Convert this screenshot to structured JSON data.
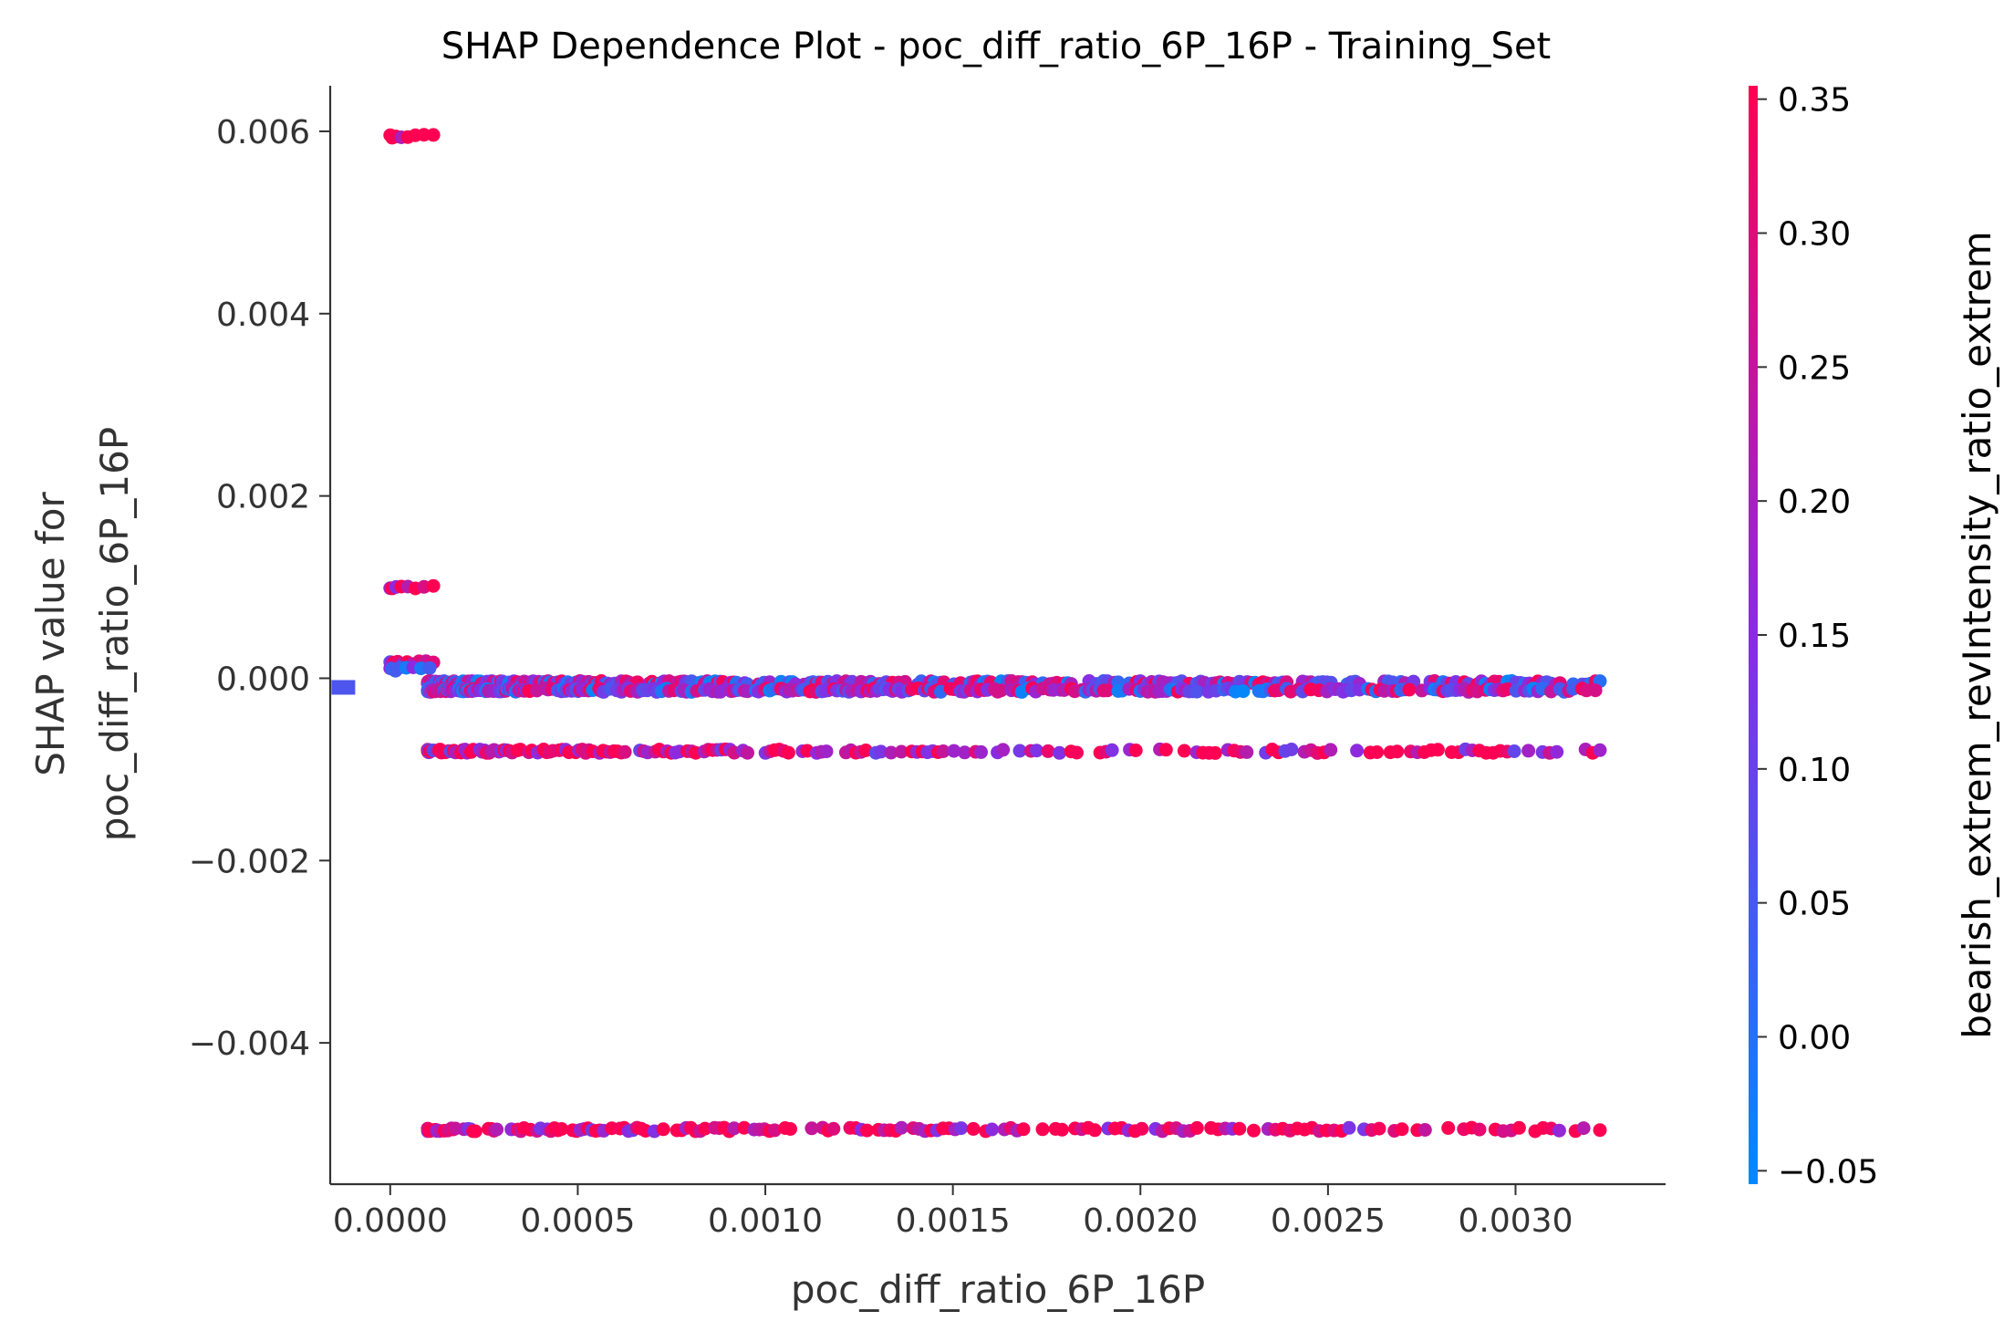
{
  "chart_data": {
    "type": "scatter",
    "title": "SHAP Dependence Plot - poc_diff_ratio_6P_16P - Training_Set",
    "xlabel": "poc_diff_ratio_6P_16P",
    "ylabel_lines": [
      "SHAP value for",
      "poc_diff_ratio_6P_16P"
    ],
    "xlim": [
      -0.00016,
      0.0034
    ],
    "ylim": [
      -0.00555,
      0.0065
    ],
    "xticks": [
      0.0,
      0.0005,
      0.001,
      0.0015,
      0.002,
      0.0025,
      0.003
    ],
    "xtick_labels": [
      "0.0000",
      "0.0005",
      "0.0010",
      "0.0015",
      "0.0020",
      "0.0025",
      "0.0030"
    ],
    "yticks": [
      0.006,
      0.004,
      0.002,
      0.0,
      -0.002,
      -0.004
    ],
    "ytick_labels": [
      "0.006",
      "0.004",
      "0.002",
      "0.000",
      "−0.002",
      "−0.004"
    ],
    "colorbar": {
      "label": "bearish_extrem_revIntensity_ratio_extrem",
      "range": [
        -0.055,
        0.355
      ],
      "ticks": [
        0.35,
        0.3,
        0.25,
        0.2,
        0.15,
        0.1,
        0.05,
        0.0,
        -0.05
      ],
      "tick_labels": [
        "0.35",
        "0.30",
        "0.25",
        "0.20",
        "0.15",
        "0.10",
        "0.05",
        "0.00",
        "−0.05"
      ],
      "color_low": "#008afb",
      "color_mid": "#8a2be2",
      "color_high": "#ff0052"
    },
    "missing_marker": {
      "x": -0.000125,
      "y": -0.0001,
      "color_value": 0.06
    },
    "bands": [
      {
        "y": 0.00595,
        "x_min": 0.0,
        "x_max": 0.000115,
        "color_value": 0.35,
        "points": 8
      },
      {
        "y": 0.001,
        "x_min": 0.0,
        "x_max": 0.000115,
        "color_value": 0.32,
        "points": 8
      },
      {
        "y": 0.00017,
        "x_min": 0.0,
        "x_max": 0.000115,
        "color_value": 0.22,
        "points": 10
      },
      {
        "y": 0.0001,
        "x_min": 0.0,
        "x_max": 0.000105,
        "color_value": 0.08,
        "points": 8
      },
      {
        "y": -5e-05,
        "x_min": 0.0001,
        "x_max": 0.003225,
        "color_value": 0.15,
        "points": 420
      },
      {
        "y": -0.00013,
        "x_min": 0.0001,
        "x_max": 0.003225,
        "color_value": 0.18,
        "points": 420
      },
      {
        "y": -0.0008,
        "x_min": 0.0001,
        "x_max": 0.003225,
        "color_value": 0.3,
        "points": 260
      },
      {
        "y": -0.00495,
        "x_min": 0.0001,
        "x_max": 0.003225,
        "color_value": 0.33,
        "points": 230
      }
    ]
  }
}
